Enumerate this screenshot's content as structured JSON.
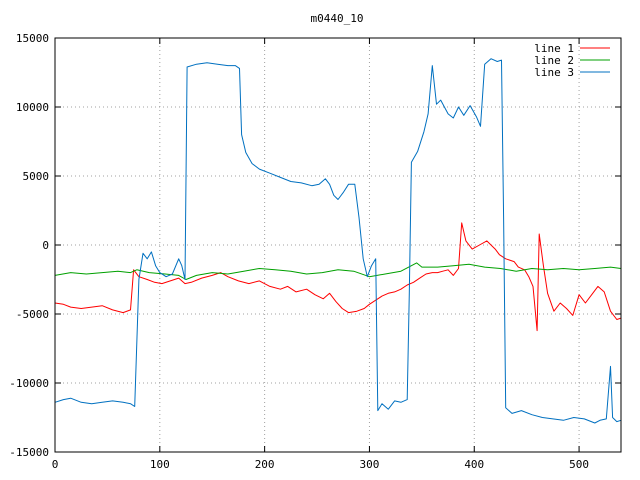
{
  "chart_data": {
    "type": "line",
    "title": "m0440_10",
    "xlabel": "",
    "ylabel": "",
    "xlim": [
      0,
      540
    ],
    "ylim": [
      -15000,
      15000
    ],
    "xticks": [
      0,
      100,
      200,
      300,
      400,
      500
    ],
    "yticks": [
      -15000,
      -10000,
      -5000,
      0,
      5000,
      10000,
      15000
    ],
    "grid": true,
    "legend_position": "top-right",
    "series": [
      {
        "name": "line 1",
        "color": "#ff0000",
        "points": [
          [
            0,
            -4200
          ],
          [
            8,
            -4300
          ],
          [
            15,
            -4500
          ],
          [
            25,
            -4600
          ],
          [
            35,
            -4500
          ],
          [
            45,
            -4400
          ],
          [
            55,
            -4700
          ],
          [
            65,
            -4900
          ],
          [
            72,
            -4700
          ],
          [
            75,
            -1800
          ],
          [
            80,
            -2300
          ],
          [
            88,
            -2500
          ],
          [
            95,
            -2700
          ],
          [
            102,
            -2800
          ],
          [
            110,
            -2600
          ],
          [
            118,
            -2400
          ],
          [
            124,
            -2800
          ],
          [
            130,
            -2700
          ],
          [
            140,
            -2400
          ],
          [
            150,
            -2200
          ],
          [
            158,
            -2000
          ],
          [
            165,
            -2300
          ],
          [
            175,
            -2600
          ],
          [
            185,
            -2800
          ],
          [
            195,
            -2600
          ],
          [
            205,
            -3000
          ],
          [
            215,
            -3200
          ],
          [
            222,
            -3000
          ],
          [
            230,
            -3400
          ],
          [
            240,
            -3200
          ],
          [
            248,
            -3600
          ],
          [
            256,
            -3900
          ],
          [
            262,
            -3500
          ],
          [
            268,
            -4100
          ],
          [
            274,
            -4600
          ],
          [
            280,
            -4900
          ],
          [
            288,
            -4800
          ],
          [
            295,
            -4600
          ],
          [
            300,
            -4300
          ],
          [
            306,
            -4000
          ],
          [
            312,
            -3700
          ],
          [
            318,
            -3500
          ],
          [
            324,
            -3400
          ],
          [
            330,
            -3200
          ],
          [
            336,
            -2900
          ],
          [
            342,
            -2700
          ],
          [
            348,
            -2400
          ],
          [
            354,
            -2100
          ],
          [
            360,
            -2000
          ],
          [
            365,
            -2000
          ],
          [
            370,
            -1900
          ],
          [
            375,
            -1800
          ],
          [
            380,
            -2200
          ],
          [
            385,
            -1700
          ],
          [
            388,
            1600
          ],
          [
            392,
            300
          ],
          [
            398,
            -300
          ],
          [
            405,
            0
          ],
          [
            412,
            300
          ],
          [
            420,
            -300
          ],
          [
            424,
            -700
          ],
          [
            430,
            -1000
          ],
          [
            438,
            -1200
          ],
          [
            442,
            -1600
          ],
          [
            448,
            -1800
          ],
          [
            452,
            -2300
          ],
          [
            456,
            -3000
          ],
          [
            460,
            -6200
          ],
          [
            462,
            800
          ],
          [
            466,
            -1500
          ],
          [
            470,
            -3500
          ],
          [
            476,
            -4800
          ],
          [
            482,
            -4200
          ],
          [
            488,
            -4600
          ],
          [
            494,
            -5100
          ],
          [
            500,
            -3600
          ],
          [
            506,
            -4200
          ],
          [
            512,
            -3600
          ],
          [
            518,
            -3000
          ],
          [
            524,
            -3400
          ],
          [
            530,
            -4800
          ],
          [
            536,
            -5400
          ],
          [
            540,
            -5300
          ]
        ]
      },
      {
        "name": "line 2",
        "color": "#00a000",
        "points": [
          [
            0,
            -2200
          ],
          [
            15,
            -2000
          ],
          [
            30,
            -2100
          ],
          [
            45,
            -2000
          ],
          [
            60,
            -1900
          ],
          [
            72,
            -2000
          ],
          [
            78,
            -1800
          ],
          [
            90,
            -2000
          ],
          [
            105,
            -2100
          ],
          [
            118,
            -2200
          ],
          [
            125,
            -2500
          ],
          [
            135,
            -2200
          ],
          [
            150,
            -2000
          ],
          [
            165,
            -2100
          ],
          [
            180,
            -1900
          ],
          [
            195,
            -1700
          ],
          [
            210,
            -1800
          ],
          [
            225,
            -1900
          ],
          [
            240,
            -2100
          ],
          [
            255,
            -2000
          ],
          [
            270,
            -1800
          ],
          [
            285,
            -1900
          ],
          [
            300,
            -2300
          ],
          [
            315,
            -2100
          ],
          [
            330,
            -1900
          ],
          [
            340,
            -1500
          ],
          [
            345,
            -1300
          ],
          [
            350,
            -1600
          ],
          [
            365,
            -1600
          ],
          [
            380,
            -1500
          ],
          [
            395,
            -1400
          ],
          [
            410,
            -1600
          ],
          [
            425,
            -1700
          ],
          [
            440,
            -1900
          ],
          [
            455,
            -1700
          ],
          [
            470,
            -1800
          ],
          [
            485,
            -1700
          ],
          [
            500,
            -1800
          ],
          [
            515,
            -1700
          ],
          [
            530,
            -1600
          ],
          [
            540,
            -1700
          ]
        ]
      },
      {
        "name": "line 3",
        "color": "#0070c0",
        "points": [
          [
            0,
            -11400
          ],
          [
            8,
            -11200
          ],
          [
            15,
            -11100
          ],
          [
            25,
            -11400
          ],
          [
            35,
            -11500
          ],
          [
            45,
            -11400
          ],
          [
            55,
            -11300
          ],
          [
            65,
            -11400
          ],
          [
            72,
            -11500
          ],
          [
            76,
            -11700
          ],
          [
            80,
            -2500
          ],
          [
            84,
            -600
          ],
          [
            88,
            -1000
          ],
          [
            92,
            -500
          ],
          [
            96,
            -1500
          ],
          [
            100,
            -2000
          ],
          [
            106,
            -2300
          ],
          [
            112,
            -2100
          ],
          [
            118,
            -1000
          ],
          [
            121,
            -1500
          ],
          [
            124,
            -2500
          ],
          [
            126,
            12900
          ],
          [
            135,
            13100
          ],
          [
            145,
            13200
          ],
          [
            155,
            13100
          ],
          [
            165,
            13000
          ],
          [
            172,
            13000
          ],
          [
            176,
            12800
          ],
          [
            178,
            8000
          ],
          [
            182,
            6700
          ],
          [
            188,
            5900
          ],
          [
            195,
            5500
          ],
          [
            205,
            5200
          ],
          [
            215,
            4900
          ],
          [
            225,
            4600
          ],
          [
            235,
            4500
          ],
          [
            245,
            4300
          ],
          [
            252,
            4400
          ],
          [
            258,
            4800
          ],
          [
            262,
            4400
          ],
          [
            266,
            3600
          ],
          [
            270,
            3300
          ],
          [
            275,
            3800
          ],
          [
            280,
            4400
          ],
          [
            286,
            4400
          ],
          [
            290,
            2000
          ],
          [
            294,
            -1000
          ],
          [
            298,
            -2300
          ],
          [
            302,
            -1500
          ],
          [
            306,
            -1000
          ],
          [
            308,
            -12000
          ],
          [
            312,
            -11500
          ],
          [
            318,
            -11900
          ],
          [
            324,
            -11300
          ],
          [
            330,
            -11400
          ],
          [
            336,
            -11200
          ],
          [
            338,
            -3500
          ],
          [
            340,
            6000
          ],
          [
            346,
            6800
          ],
          [
            352,
            8200
          ],
          [
            356,
            9500
          ],
          [
            360,
            13000
          ],
          [
            364,
            10200
          ],
          [
            368,
            10500
          ],
          [
            375,
            9500
          ],
          [
            380,
            9200
          ],
          [
            385,
            10000
          ],
          [
            390,
            9400
          ],
          [
            396,
            10100
          ],
          [
            402,
            9300
          ],
          [
            406,
            8600
          ],
          [
            410,
            13100
          ],
          [
            416,
            13500
          ],
          [
            422,
            13300
          ],
          [
            426,
            13400
          ],
          [
            428,
            2000
          ],
          [
            430,
            -11800
          ],
          [
            436,
            -12200
          ],
          [
            445,
            -12000
          ],
          [
            455,
            -12300
          ],
          [
            465,
            -12500
          ],
          [
            475,
            -12600
          ],
          [
            485,
            -12700
          ],
          [
            495,
            -12500
          ],
          [
            505,
            -12600
          ],
          [
            515,
            -12900
          ],
          [
            520,
            -12700
          ],
          [
            526,
            -12600
          ],
          [
            530,
            -8800
          ],
          [
            532,
            -12500
          ],
          [
            536,
            -12800
          ],
          [
            540,
            -12700
          ]
        ]
      }
    ]
  }
}
